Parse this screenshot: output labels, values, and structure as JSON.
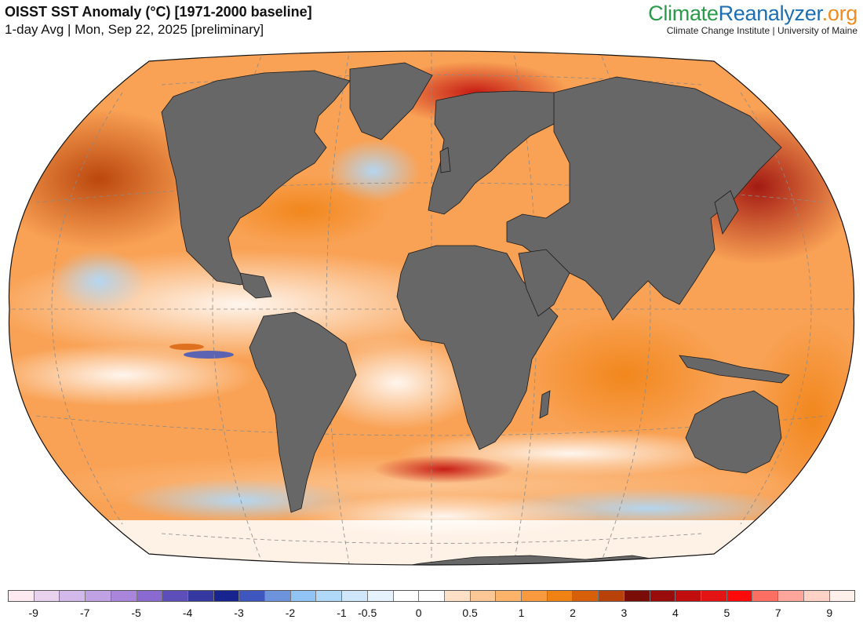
{
  "header": {
    "title": "OISST SST Anomaly (°C) [1971-2000 baseline]",
    "subtitle": "1-day Avg | Mon, Sep 22, 2025 [preliminary]"
  },
  "brand": {
    "name_part1": "Climate",
    "name_part2": "Reanalyzer",
    "name_part3": ".org",
    "tagline": "Climate Change Institute | University of Maine",
    "colors": {
      "part1": "#2a9b48",
      "part2": "#1c6fb3",
      "part3": "#f08b1f"
    }
  },
  "map": {
    "projection": "Winkel Tripel",
    "land_color": "#676767",
    "graticule": "dashed",
    "background_anomaly": "warm"
  },
  "legend": {
    "colors": [
      "#fde9f0",
      "#e8d2ee",
      "#d3b9ea",
      "#c0a1e4",
      "#a985dc",
      "#8a6ad0",
      "#5d4fba",
      "#3438a0",
      "#172490",
      "#3e56be",
      "#6c93dc",
      "#91c4f4",
      "#b0d8f8",
      "#cfe6fb",
      "#e6f2fd",
      "#ffffff",
      "#ffffff",
      "#fde0c6",
      "#fcc796",
      "#fbb36a",
      "#f99a3f",
      "#f08213",
      "#d85f0a",
      "#b8420a",
      "#7a0d08",
      "#9a0b0b",
      "#c10d0d",
      "#e41414",
      "#ff0a0a",
      "#fe6f63",
      "#ffa59b",
      "#ffd2c5",
      "#fff0eb"
    ],
    "ticks": [
      {
        "label": "-9",
        "index": 1
      },
      {
        "label": "-7",
        "index": 3
      },
      {
        "label": "-5",
        "index": 5
      },
      {
        "label": "-4",
        "index": 7
      },
      {
        "label": "-3",
        "index": 9
      },
      {
        "label": "-2",
        "index": 11
      },
      {
        "label": "-1",
        "index": 13
      },
      {
        "label": "-0.5",
        "index": 14
      },
      {
        "label": "0",
        "index": 16
      },
      {
        "label": "0.5",
        "index": 18
      },
      {
        "label": "1",
        "index": 20
      },
      {
        "label": "2",
        "index": 22
      },
      {
        "label": "3",
        "index": 24
      },
      {
        "label": "4",
        "index": 26
      },
      {
        "label": "5",
        "index": 28
      },
      {
        "label": "7",
        "index": 30
      },
      {
        "label": "9",
        "index": 32
      }
    ]
  }
}
